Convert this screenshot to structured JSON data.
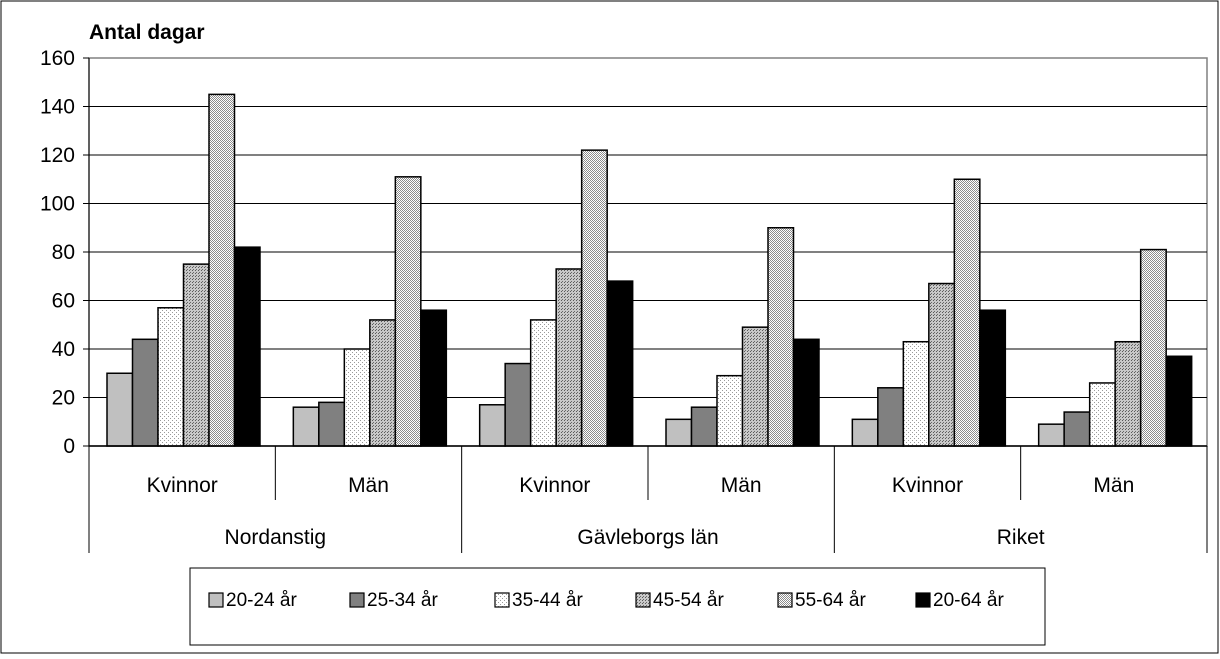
{
  "chart_data": {
    "type": "bar",
    "ylabel": "Antal dagar",
    "ylim": [
      0,
      160
    ],
    "yticks": [
      0,
      20,
      40,
      60,
      80,
      100,
      120,
      140,
      160
    ],
    "grid": true,
    "legend_position": "bottom",
    "groups": [
      "Nordanstig",
      "Gävleborgs län",
      "Riket"
    ],
    "categories": [
      "Kvinnor",
      "Män",
      "Kvinnor",
      "Män",
      "Kvinnor",
      "Män"
    ],
    "series": [
      {
        "name": "20-24 år",
        "color": "#c0c0c0",
        "pattern": "solid-light-gray",
        "values": [
          30,
          16,
          17,
          11,
          11,
          9
        ]
      },
      {
        "name": "25-34 år",
        "color": "#808080",
        "pattern": "solid-dark-gray",
        "values": [
          44,
          18,
          34,
          16,
          24,
          14
        ]
      },
      {
        "name": "35-44 år",
        "color": "#f0f0f0",
        "pattern": "light-hatch",
        "values": [
          57,
          40,
          52,
          29,
          43,
          26
        ]
      },
      {
        "name": "45-54 år",
        "color": "#a6a6a6",
        "pattern": "medium-dots",
        "values": [
          75,
          52,
          73,
          49,
          67,
          43
        ]
      },
      {
        "name": "55-64 år",
        "color": "#d4d4d4",
        "pattern": "fine-checker",
        "values": [
          145,
          111,
          122,
          90,
          110,
          81
        ]
      },
      {
        "name": "20-64 år",
        "color": "#000000",
        "pattern": "solid-black",
        "values": [
          82,
          56,
          68,
          44,
          56,
          37
        ]
      }
    ]
  }
}
